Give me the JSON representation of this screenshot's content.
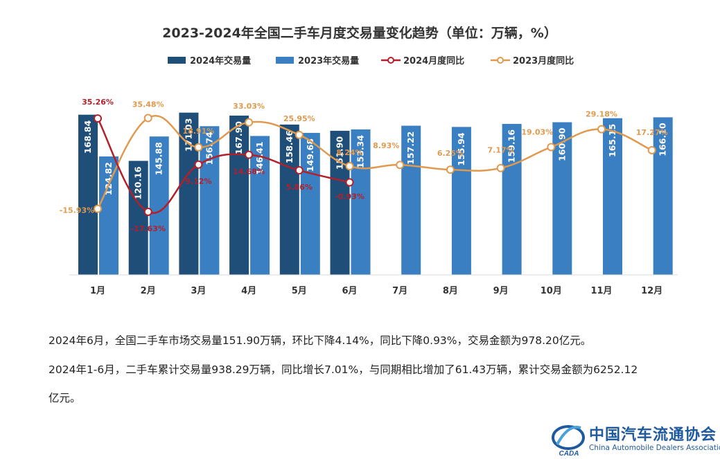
{
  "chart_data": {
    "type": "bar+line",
    "title": "2023-2024年全国二手车月度交易量变化趋势（单位：万辆，%）",
    "categories": [
      "1月",
      "2月",
      "3月",
      "4月",
      "5月",
      "6月",
      "7月",
      "8月",
      "9月",
      "10月",
      "11月",
      "12月"
    ],
    "bar_series": [
      {
        "name": "2024年交易量",
        "color": "#1f4e79",
        "values": [
          168.84,
          120.16,
          171.03,
          167.9,
          158.46,
          151.9,
          null,
          null,
          null,
          null,
          null,
          null
        ],
        "labels": [
          "168.84",
          "120.16",
          "171.03",
          "167.90",
          "158.46",
          "151.90",
          "",
          "",
          "",
          "",
          "",
          ""
        ]
      },
      {
        "name": "2023年交易量",
        "color": "#3a7fc1",
        "values": [
          124.82,
          145.88,
          156.74,
          146.41,
          149.68,
          153.34,
          157.22,
          155.94,
          159.16,
          160.9,
          165.15,
          166.1
        ],
        "labels": [
          "124.82",
          "145.88",
          "156.74",
          "146.41",
          "149.68",
          "153.34",
          "157.22",
          "155.94",
          "159.16",
          "160.90",
          "165.15",
          "166.10"
        ]
      }
    ],
    "line_series": [
      {
        "name": "2024月度同比",
        "color": "#b3202a",
        "values": [
          35.26,
          -17.63,
          9.12,
          14.68,
          5.86,
          -0.93,
          null,
          null,
          null,
          null,
          null,
          null
        ],
        "labels": [
          "35.26%",
          "-17.63%",
          "9.12%",
          "14.68%",
          "5.86%",
          "-0.93%",
          "",
          "",
          "",
          "",
          "",
          ""
        ]
      },
      {
        "name": "2023月度同比",
        "color": "#e09a4f",
        "values": [
          -15.93,
          35.48,
          18.91,
          33.03,
          25.95,
          8.24,
          8.93,
          6.25,
          7.17,
          19.03,
          29.18,
          17.27
        ],
        "labels": [
          "-15.93%",
          "35.48%",
          "18.91%",
          "33.03%",
          "25.95%",
          "8.24%",
          "8.93%",
          "6.25%",
          "7.17%",
          "19.03%",
          "29.18%",
          "17.27%"
        ]
      }
    ],
    "grid": false,
    "legend_position": "top"
  },
  "notes": {
    "line1": "2024年6月，全国二手车市场交易量151.90万辆，环比下降4.14%，同比下降0.93%，交易金额为978.20亿元。",
    "line2": "2024年1-6月，二手车累计交易量938.29万辆，同比增长7.01%，与同期相比增加了61.43万辆，累计交易金额为6252.12",
    "line3": "亿元。"
  },
  "logo": {
    "name_cn": "中国汽车流通协会",
    "name_en": "China Automobile Dealers Association",
    "mark": "CADA"
  }
}
